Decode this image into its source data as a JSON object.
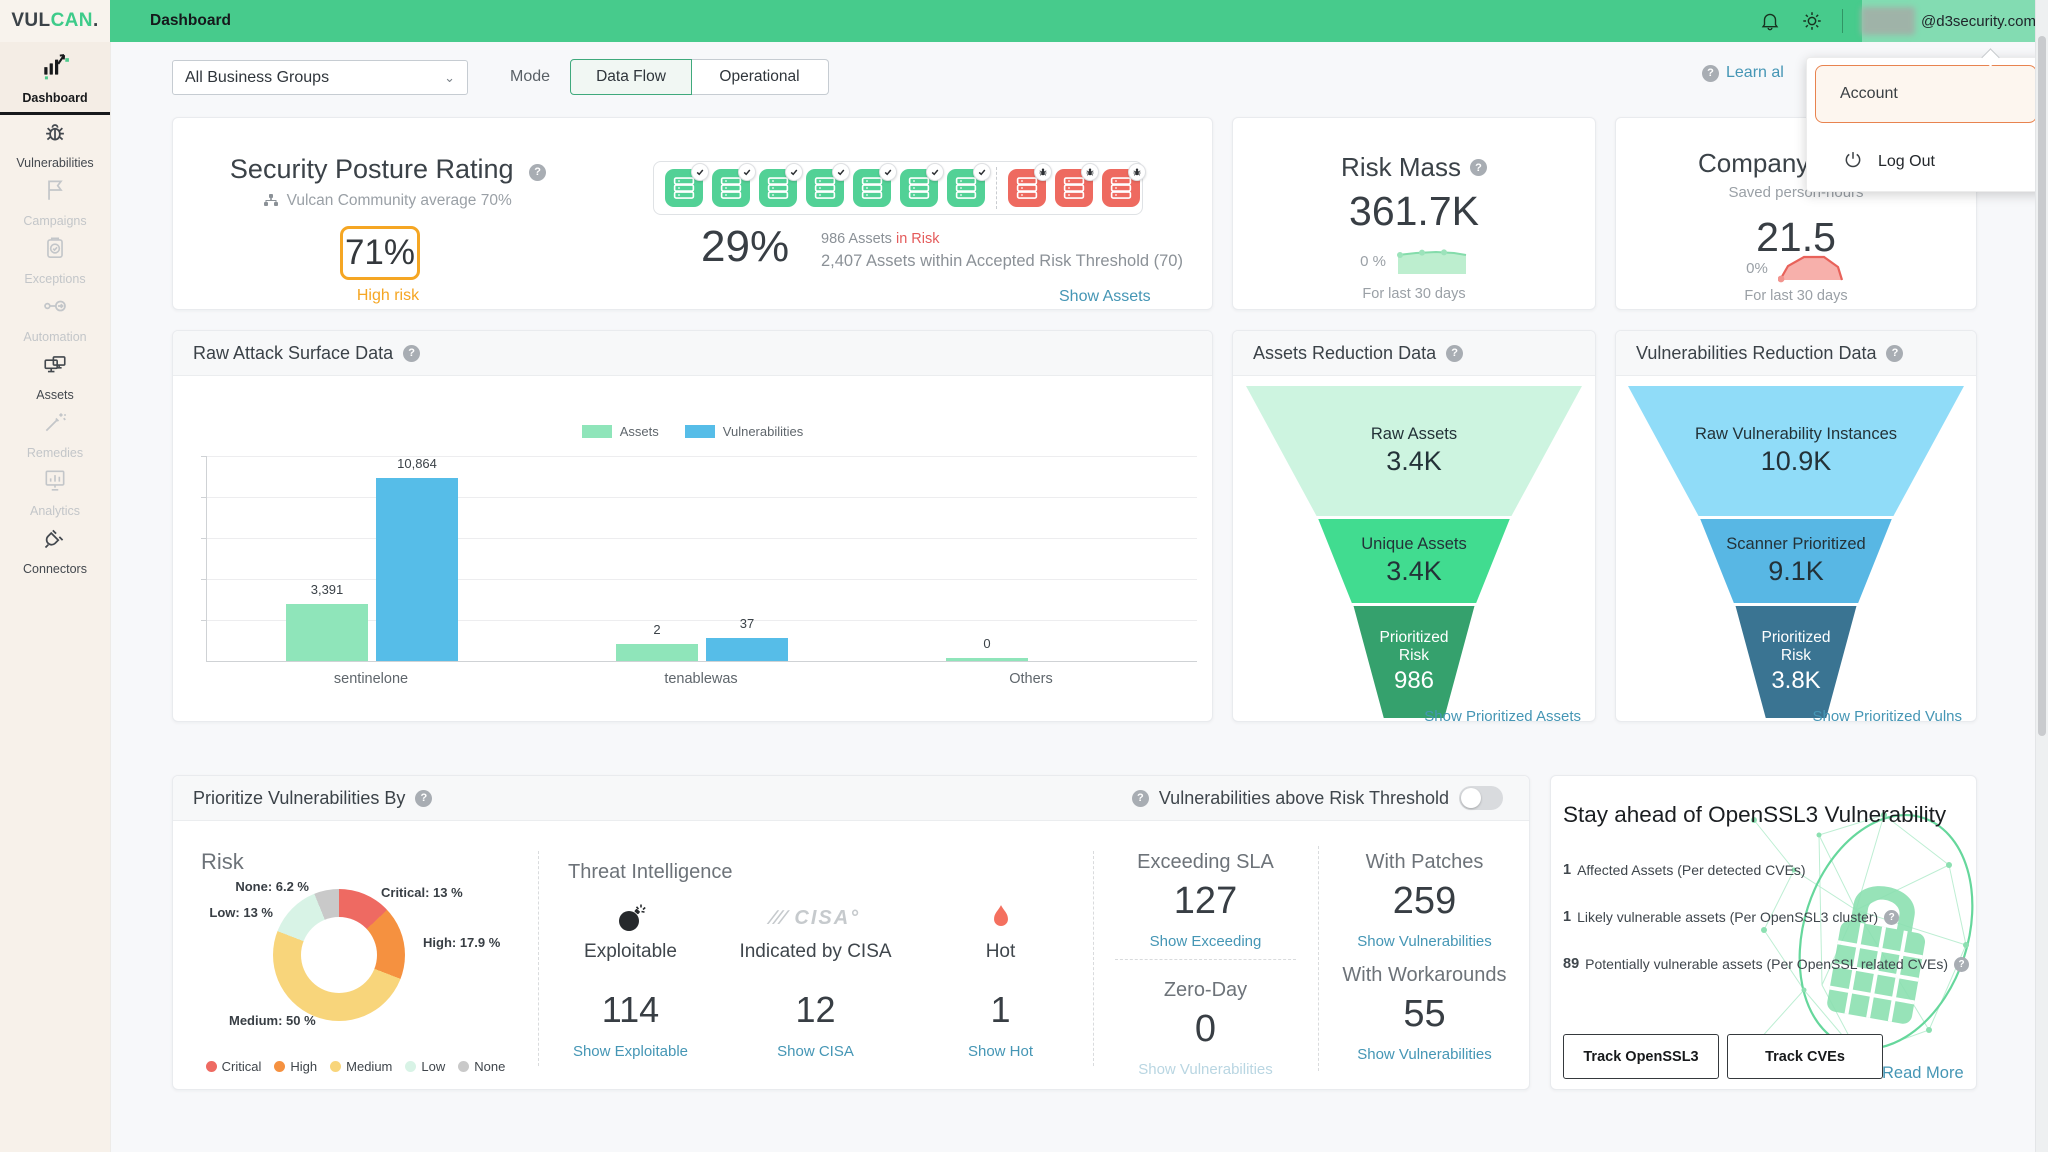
{
  "colors": {
    "topbar_green": "#47cb8c",
    "link": "#4596b5",
    "orange": "#f5a623",
    "risk_red": "#e45b5b",
    "server_safe": "#52d196",
    "server_risk": "#ee6a60",
    "assets_green": "#8fe5ba",
    "vulns_blue": "#56bde8",
    "funnel_assets": [
      "#cdf4e0",
      "#41dc90",
      "#35a16d"
    ],
    "funnel_vulns": [
      "#90dcf8",
      "#58b7e4",
      "#3a7492"
    ],
    "donut": {
      "Critical": "#ee6a62",
      "High": "#f59140",
      "Medium": "#f8d57b",
      "Low": "#d8f3e6",
      "None": "#c9c9c9"
    }
  },
  "topbar": {
    "logo_dark": "VUL",
    "logo_green": "CAN",
    "logo_dot": ".",
    "title": "Dashboard",
    "email": "@d3security.com"
  },
  "user_menu": {
    "account": "Account",
    "logout": "Log Out"
  },
  "toolbar": {
    "business_group": "All Business Groups",
    "mode_label": "Mode",
    "mode_dataflow": "Data Flow",
    "mode_operational": "Operational",
    "learn_link": "Learn al"
  },
  "sidebar": {
    "items": [
      {
        "label": "Dashboard",
        "state": "active"
      },
      {
        "label": "Vulnerabilities",
        "state": "enabled"
      },
      {
        "label": "Campaigns",
        "state": "disabled"
      },
      {
        "label": "Exceptions",
        "state": "disabled"
      },
      {
        "label": "Automation",
        "state": "disabled"
      },
      {
        "label": "Assets",
        "state": "enabled"
      },
      {
        "label": "Remedies",
        "state": "disabled"
      },
      {
        "label": "Analytics",
        "state": "disabled"
      },
      {
        "label": "Connectors",
        "state": "enabled"
      }
    ]
  },
  "posture": {
    "title": "Security Posture Rating",
    "subtitle": "Vulcan Community average 70%",
    "score": "71%",
    "score_label": "High risk",
    "percent": "29%",
    "line1_prefix": "986 Assets ",
    "line1_highlight": "in Risk",
    "line2": "2,407 Assets within Accepted Risk Threshold (70)",
    "link": "Show Assets",
    "safe_servers": 7,
    "risk_servers": 3
  },
  "risk_mass": {
    "title": "Risk Mass",
    "value": "361.7K",
    "delta": "0 %",
    "period": "For last 30 days"
  },
  "company": {
    "title": "Company",
    "subtitle": "Saved person-hours",
    "value": "21.5",
    "delta": "0%",
    "period": "For last 30 days"
  },
  "raw_attack": {
    "title": "Raw Attack Surface Data",
    "legend": [
      "Assets",
      "Vulnerabilities"
    ],
    "chart": {
      "type": "bar",
      "categories": [
        "sentinelone",
        "tenablewas",
        "Others"
      ],
      "series": [
        {
          "name": "Assets",
          "values": [
            3391,
            2,
            0
          ],
          "labels": [
            "3,391",
            "2",
            "0"
          ]
        },
        {
          "name": "Vulnerabilities",
          "values": [
            10864,
            37,
            null
          ],
          "labels": [
            "10,864",
            "37",
            ""
          ]
        }
      ],
      "ymax": 12000,
      "grid": true
    }
  },
  "assets_reduction": {
    "title": "Assets Reduction Data",
    "tiers": [
      {
        "label": "Raw Assets",
        "value": "3.4K"
      },
      {
        "label": "Unique Assets",
        "value": "3.4K"
      },
      {
        "label": "Prioritized Risk",
        "value": "986"
      }
    ],
    "link": "Show Prioritized Assets"
  },
  "vulns_reduction": {
    "title": "Vulnerabilities Reduction Data",
    "tiers": [
      {
        "label": "Raw Vulnerability Instances",
        "value": "10.9K"
      },
      {
        "label": "Scanner Prioritized",
        "value": "9.1K"
      },
      {
        "label": "Prioritized Risk",
        "value": "3.8K"
      }
    ],
    "link": "Show Prioritized Vulns"
  },
  "prioritize": {
    "title": "Prioritize Vulnerabilities By",
    "threshold_label": "Vulnerabilities above Risk Threshold",
    "toggle_on": false,
    "risk": {
      "label": "Risk",
      "type": "donut",
      "slices": [
        {
          "name": "Critical",
          "pct": 13,
          "label": "Critical: 13 %"
        },
        {
          "name": "High",
          "pct": 17.9,
          "label": "High: 17.9 %"
        },
        {
          "name": "Medium",
          "pct": 50,
          "label": "Medium: 50 %"
        },
        {
          "name": "Low",
          "pct": 13,
          "label": "Low: 13 %"
        },
        {
          "name": "None",
          "pct": 6.2,
          "label": "None: 6.2 %"
        }
      ],
      "legend": [
        "Critical",
        "High",
        "Medium",
        "Low",
        "None"
      ]
    },
    "ti": {
      "label": "Threat Intelligence",
      "items": [
        {
          "icon": "bomb",
          "name": "Exploitable",
          "value": "114",
          "link": "Show Exploitable"
        },
        {
          "icon": "cisa",
          "name": "Indicated by CISA",
          "value": "12",
          "link": "Show CISA"
        },
        {
          "icon": "flame",
          "name": "Hot",
          "value": "1",
          "link": "Show Hot"
        }
      ]
    },
    "stats": [
      {
        "name": "Exceeding SLA",
        "value": "127",
        "link": "Show Exceeding",
        "disabled": false
      },
      {
        "name": "Zero-Day",
        "value": "0",
        "link": "Show Vulnerabilities",
        "disabled": true
      },
      {
        "name": "With Patches",
        "value": "259",
        "link": "Show Vulnerabilities",
        "disabled": false
      },
      {
        "name": "With Workarounds",
        "value": "55",
        "link": "Show Vulnerabilities",
        "disabled": false
      }
    ]
  },
  "openssl": {
    "title": "Stay ahead of OpenSSL3 Vulnerability",
    "lines": [
      {
        "num": "1",
        "text": "Affected Assets (Per detected CVEs)",
        "help": false
      },
      {
        "num": "1",
        "text": "Likely vulnerable assets (Per OpenSSL3 cluster)",
        "help": true
      },
      {
        "num": "89",
        "text": "Potentially vulnerable assets (Per OpenSSL related CVEs)",
        "help": true
      }
    ],
    "buttons": [
      "Track OpenSSL3",
      "Track CVEs"
    ],
    "read_more": "Read More"
  }
}
